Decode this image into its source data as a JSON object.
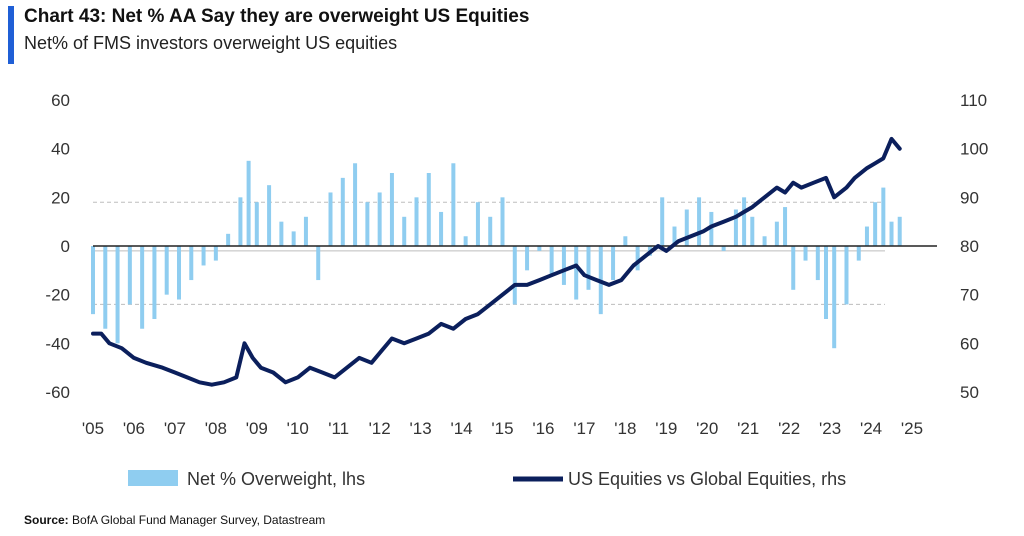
{
  "header": {
    "title": "Chart 43: Net % AA Say they are overweight US Equities",
    "subtitle": "Net% of FMS investors overweight US equities"
  },
  "footer": {
    "source_label": "Source:",
    "source_text": "BofA Global Fund Manager Survey, Datastream"
  },
  "colors": {
    "bars": "#8fcdf0",
    "line": "#0b1f5c",
    "accent": "#1f5fd6"
  },
  "chart_data": {
    "type": "bar+line",
    "title": "Chart 43: Net % AA Say they are overweight US Equities",
    "subtitle": "Net% of FMS investors overweight US equities",
    "x_tick_labels": [
      "'05",
      "'06",
      "'07",
      "'08",
      "'09",
      "'10",
      "'11",
      "'12",
      "'13",
      "'14",
      "'15",
      "'16",
      "'17",
      "'18",
      "'19",
      "'20",
      "'21",
      "'22",
      "'23",
      "'24",
      "'25"
    ],
    "x_range": [
      2005.0,
      2025.0
    ],
    "y_left": {
      "ticks": [
        60,
        40,
        20,
        0,
        -20,
        -40,
        -60
      ],
      "range": [
        -60,
        60
      ]
    },
    "y_right": {
      "ticks": [
        110,
        100,
        90,
        80,
        70,
        60,
        50
      ],
      "range": [
        50,
        110
      ]
    },
    "reference_lines_lhs": [
      18,
      -2,
      -24
    ],
    "legend": {
      "position": "bottom",
      "entries": [
        "Net % Overweight, lhs",
        "US Equities vs Global Equities, rhs"
      ]
    },
    "series": [
      {
        "name": "Net % Overweight, lhs",
        "type": "bar",
        "axis": "left",
        "points": [
          [
            2005.0,
            -28
          ],
          [
            2005.3,
            -34
          ],
          [
            2005.6,
            -40
          ],
          [
            2005.9,
            -24
          ],
          [
            2006.2,
            -34
          ],
          [
            2006.5,
            -30
          ],
          [
            2006.8,
            -20
          ],
          [
            2007.1,
            -22
          ],
          [
            2007.4,
            -14
          ],
          [
            2007.7,
            -8
          ],
          [
            2008.0,
            -6
          ],
          [
            2008.3,
            5
          ],
          [
            2008.6,
            20
          ],
          [
            2008.8,
            35
          ],
          [
            2009.0,
            18
          ],
          [
            2009.3,
            25
          ],
          [
            2009.6,
            10
          ],
          [
            2009.9,
            6
          ],
          [
            2010.2,
            12
          ],
          [
            2010.5,
            -14
          ],
          [
            2010.8,
            22
          ],
          [
            2011.1,
            28
          ],
          [
            2011.4,
            34
          ],
          [
            2011.7,
            18
          ],
          [
            2012.0,
            22
          ],
          [
            2012.3,
            30
          ],
          [
            2012.6,
            12
          ],
          [
            2012.9,
            20
          ],
          [
            2013.2,
            30
          ],
          [
            2013.5,
            14
          ],
          [
            2013.8,
            34
          ],
          [
            2014.1,
            4
          ],
          [
            2014.4,
            18
          ],
          [
            2014.7,
            12
          ],
          [
            2015.0,
            20
          ],
          [
            2015.3,
            -24
          ],
          [
            2015.6,
            -10
          ],
          [
            2015.9,
            -2
          ],
          [
            2016.2,
            -12
          ],
          [
            2016.5,
            -16
          ],
          [
            2016.8,
            -22
          ],
          [
            2017.1,
            -18
          ],
          [
            2017.4,
            -28
          ],
          [
            2017.7,
            -14
          ],
          [
            2018.0,
            4
          ],
          [
            2018.3,
            -10
          ],
          [
            2018.6,
            -4
          ],
          [
            2018.9,
            20
          ],
          [
            2019.2,
            8
          ],
          [
            2019.5,
            15
          ],
          [
            2019.8,
            20
          ],
          [
            2020.1,
            14
          ],
          [
            2020.4,
            -2
          ],
          [
            2020.7,
            15
          ],
          [
            2020.9,
            20
          ],
          [
            2021.1,
            12
          ],
          [
            2021.4,
            4
          ],
          [
            2021.7,
            10
          ],
          [
            2021.9,
            16
          ],
          [
            2022.1,
            -18
          ],
          [
            2022.4,
            -6
          ],
          [
            2022.7,
            -14
          ],
          [
            2022.9,
            -30
          ],
          [
            2023.1,
            -42
          ],
          [
            2023.4,
            -24
          ],
          [
            2023.7,
            -6
          ],
          [
            2023.9,
            8
          ],
          [
            2024.1,
            18
          ],
          [
            2024.3,
            24
          ],
          [
            2024.5,
            10
          ],
          [
            2024.7,
            12
          ]
        ]
      },
      {
        "name": "US Equities vs Global Equities, rhs",
        "type": "line",
        "axis": "right",
        "points": [
          [
            2005.0,
            62
          ],
          [
            2005.2,
            62
          ],
          [
            2005.4,
            60
          ],
          [
            2005.7,
            59
          ],
          [
            2006.0,
            57
          ],
          [
            2006.3,
            56
          ],
          [
            2006.7,
            55
          ],
          [
            2007.0,
            54
          ],
          [
            2007.3,
            53
          ],
          [
            2007.6,
            52
          ],
          [
            2007.9,
            51.5
          ],
          [
            2008.2,
            52
          ],
          [
            2008.5,
            53
          ],
          [
            2008.7,
            60
          ],
          [
            2008.9,
            57
          ],
          [
            2009.1,
            55
          ],
          [
            2009.4,
            54
          ],
          [
            2009.7,
            52
          ],
          [
            2010.0,
            53
          ],
          [
            2010.3,
            55
          ],
          [
            2010.6,
            54
          ],
          [
            2010.9,
            53
          ],
          [
            2011.2,
            55
          ],
          [
            2011.5,
            57
          ],
          [
            2011.8,
            56
          ],
          [
            2012.0,
            58
          ],
          [
            2012.3,
            61
          ],
          [
            2012.6,
            60
          ],
          [
            2012.9,
            61
          ],
          [
            2013.2,
            62
          ],
          [
            2013.5,
            64
          ],
          [
            2013.8,
            63
          ],
          [
            2014.1,
            65
          ],
          [
            2014.4,
            66
          ],
          [
            2014.7,
            68
          ],
          [
            2015.0,
            70
          ],
          [
            2015.3,
            72
          ],
          [
            2015.6,
            72
          ],
          [
            2015.9,
            73
          ],
          [
            2016.2,
            74
          ],
          [
            2016.5,
            75
          ],
          [
            2016.8,
            76
          ],
          [
            2017.0,
            74
          ],
          [
            2017.3,
            73
          ],
          [
            2017.6,
            72
          ],
          [
            2017.9,
            73
          ],
          [
            2018.2,
            76
          ],
          [
            2018.5,
            78
          ],
          [
            2018.8,
            80
          ],
          [
            2019.0,
            79
          ],
          [
            2019.3,
            81
          ],
          [
            2019.6,
            82
          ],
          [
            2019.9,
            83
          ],
          [
            2020.1,
            84
          ],
          [
            2020.4,
            85
          ],
          [
            2020.7,
            86
          ],
          [
            2020.9,
            87
          ],
          [
            2021.1,
            88
          ],
          [
            2021.4,
            90
          ],
          [
            2021.7,
            92
          ],
          [
            2021.9,
            91
          ],
          [
            2022.1,
            93
          ],
          [
            2022.3,
            92
          ],
          [
            2022.6,
            93
          ],
          [
            2022.9,
            94
          ],
          [
            2023.1,
            90
          ],
          [
            2023.4,
            92
          ],
          [
            2023.6,
            94
          ],
          [
            2023.9,
            96
          ],
          [
            2024.1,
            97
          ],
          [
            2024.3,
            98
          ],
          [
            2024.5,
            102
          ],
          [
            2024.7,
            100
          ]
        ]
      }
    ]
  }
}
